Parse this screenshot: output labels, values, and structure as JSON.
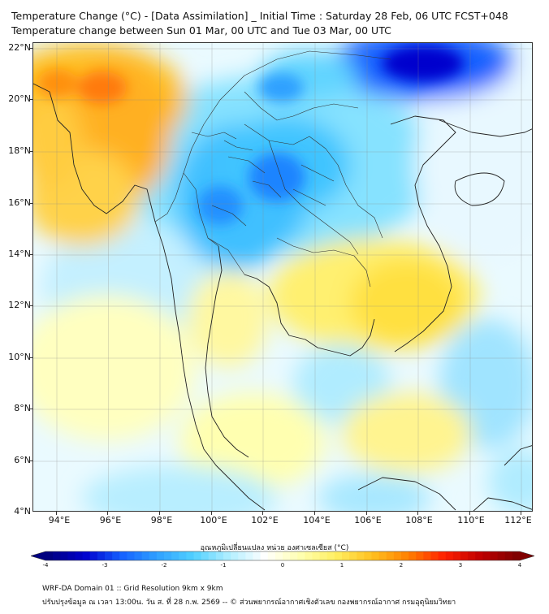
{
  "title_line1": "Temperature Change (°C) - [Data Assimilation] _ Initial Time : Saturday 28 Feb, 06 UTC FCST+048",
  "title_line2": "Temperature change between Sun 01 Mar, 00 UTC and Tue 03 Mar, 00 UTC",
  "lat_labels": [
    "22°N",
    "20°N",
    "18°N",
    "16°N",
    "14°N",
    "12°N",
    "10°N",
    "8°N",
    "6°N",
    "4°N"
  ],
  "lon_labels": [
    "94°E",
    "96°E",
    "98°E",
    "100°E",
    "102°E",
    "104°E",
    "106°E",
    "108°E",
    "110°E",
    "112°E"
  ],
  "colorbar": {
    "label": "อุณหภูมิเปลี่ยนแปลง หน่วย องศาเซลเซียส (°C)",
    "ticks": [
      "-4",
      "-3",
      "-2",
      "-1",
      "0",
      "1",
      "2",
      "3",
      "4"
    ],
    "range": [
      -4,
      4
    ],
    "colors": [
      "#000080",
      "#0000cd",
      "#1560ff",
      "#2fa0ff",
      "#50d0ff",
      "#b0eeff",
      "#ffffff",
      "#ffffb0",
      "#ffee60",
      "#ffc020",
      "#ff8000",
      "#ff2000",
      "#c00000",
      "#800000"
    ]
  },
  "footer_line1": "WRF-DA Domain 01 :: Grid Resolution 9km x 9km",
  "footer_line2": "ปรับปรุงข้อมูล ณ เวลา 13:00น. วัน ส. ที่ 28 ก.พ. 2569 -- © ส่วนพยากรณ์อากาศเชิงตัวเลข กองพยากรณ์อากาศ กรมอุตุนิยมวิทยา"
}
